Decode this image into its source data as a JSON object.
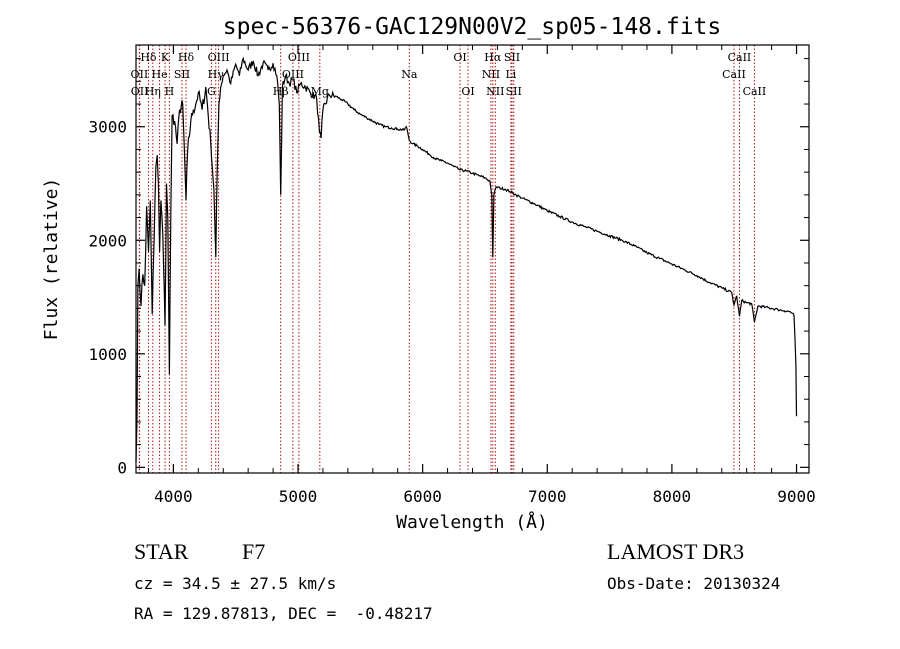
{
  "chart_data": {
    "type": "line",
    "title": "spec-56376-GAC129N00V2_sp05-148.fits",
    "xlabel": "Wavelength (Å)",
    "ylabel": "Flux (relative)",
    "xlim": [
      3700,
      9100
    ],
    "ylim": [
      -50,
      3720
    ],
    "x_ticks": [
      4000,
      5000,
      6000,
      7000,
      8000,
      9000
    ],
    "y_ticks": [
      0,
      1000,
      2000,
      3000
    ],
    "spectrum_anchors": [
      [
        3700,
        50
      ],
      [
        3708,
        420
      ],
      [
        3715,
        1600
      ],
      [
        3725,
        1750
      ],
      [
        3740,
        1420
      ],
      [
        3755,
        1700
      ],
      [
        3770,
        1600
      ],
      [
        3785,
        2300
      ],
      [
        3800,
        1900
      ],
      [
        3815,
        2350
      ],
      [
        3830,
        1350
      ],
      [
        3845,
        2000
      ],
      [
        3860,
        2650
      ],
      [
        3870,
        2750
      ],
      [
        3880,
        2500
      ],
      [
        3889,
        1900
      ],
      [
        3900,
        2350
      ],
      [
        3915,
        2050
      ],
      [
        3933,
        1250
      ],
      [
        3945,
        2500
      ],
      [
        3955,
        2200
      ],
      [
        3968,
        820
      ],
      [
        3980,
        2300
      ],
      [
        3990,
        3100
      ],
      [
        4010,
        3050
      ],
      [
        4030,
        2850
      ],
      [
        4050,
        3150
      ],
      [
        4075,
        3200
      ],
      [
        4101,
        2350
      ],
      [
        4115,
        2800
      ],
      [
        4140,
        3050
      ],
      [
        4160,
        3150
      ],
      [
        4180,
        3200
      ],
      [
        4200,
        3300
      ],
      [
        4230,
        3150
      ],
      [
        4260,
        3350
      ],
      [
        4300,
        2850
      ],
      [
        4325,
        2450
      ],
      [
        4340,
        1850
      ],
      [
        4352,
        2650
      ],
      [
        4365,
        3200
      ],
      [
        4380,
        3350
      ],
      [
        4400,
        3450
      ],
      [
        4430,
        3500
      ],
      [
        4460,
        3380
      ],
      [
        4500,
        3550
      ],
      [
        4530,
        3450
      ],
      [
        4560,
        3600
      ],
      [
        4600,
        3500
      ],
      [
        4640,
        3580
      ],
      [
        4680,
        3450
      ],
      [
        4720,
        3560
      ],
      [
        4760,
        3500
      ],
      [
        4800,
        3560
      ],
      [
        4830,
        3450
      ],
      [
        4850,
        3200
      ],
      [
        4861,
        2400
      ],
      [
        4875,
        3350
      ],
      [
        4900,
        3450
      ],
      [
        4930,
        3380
      ],
      [
        4960,
        3420
      ],
      [
        4990,
        3300
      ],
      [
        5020,
        3380
      ],
      [
        5060,
        3350
      ],
      [
        5100,
        3300
      ],
      [
        5150,
        3250
      ],
      [
        5172,
        2950
      ],
      [
        5185,
        2900
      ],
      [
        5200,
        3150
      ],
      [
        5250,
        3280
      ],
      [
        5300,
        3270
      ],
      [
        5350,
        3240
      ],
      [
        5400,
        3200
      ],
      [
        5450,
        3150
      ],
      [
        5500,
        3110
      ],
      [
        5550,
        3080
      ],
      [
        5600,
        3050
      ],
      [
        5650,
        3020
      ],
      [
        5700,
        3000
      ],
      [
        5750,
        2990
      ],
      [
        5800,
        2980
      ],
      [
        5850,
        2970
      ],
      [
        5870,
        3000
      ],
      [
        5893,
        2880
      ],
      [
        5920,
        2850
      ],
      [
        5960,
        2830
      ],
      [
        6000,
        2800
      ],
      [
        6050,
        2760
      ],
      [
        6100,
        2720
      ],
      [
        6150,
        2700
      ],
      [
        6200,
        2680
      ],
      [
        6250,
        2650
      ],
      [
        6300,
        2620
      ],
      [
        6350,
        2610
      ],
      [
        6400,
        2590
      ],
      [
        6450,
        2570
      ],
      [
        6500,
        2550
      ],
      [
        6540,
        2520
      ],
      [
        6555,
        2400
      ],
      [
        6563,
        1850
      ],
      [
        6572,
        2400
      ],
      [
        6590,
        2470
      ],
      [
        6620,
        2460
      ],
      [
        6660,
        2450
      ],
      [
        6700,
        2430
      ],
      [
        6750,
        2400
      ],
      [
        6800,
        2370
      ],
      [
        6900,
        2320
      ],
      [
        7000,
        2260
      ],
      [
        7100,
        2210
      ],
      [
        7200,
        2160
      ],
      [
        7300,
        2120
      ],
      [
        7400,
        2080
      ],
      [
        7500,
        2040
      ],
      [
        7600,
        2000
      ],
      [
        7700,
        1950
      ],
      [
        7800,
        1890
      ],
      [
        7900,
        1840
      ],
      [
        8000,
        1790
      ],
      [
        8100,
        1740
      ],
      [
        8200,
        1690
      ],
      [
        8300,
        1630
      ],
      [
        8400,
        1580
      ],
      [
        8480,
        1540
      ],
      [
        8498,
        1430
      ],
      [
        8520,
        1510
      ],
      [
        8542,
        1330
      ],
      [
        8560,
        1470
      ],
      [
        8600,
        1450
      ],
      [
        8640,
        1440
      ],
      [
        8662,
        1280
      ],
      [
        8690,
        1420
      ],
      [
        8750,
        1410
      ],
      [
        8800,
        1400
      ],
      [
        8850,
        1390
      ],
      [
        8900,
        1380
      ],
      [
        8950,
        1370
      ],
      [
        8980,
        1340
      ],
      [
        8995,
        900
      ],
      [
        9000,
        450
      ]
    ],
    "line_markers": [
      {
        "label": "Hδ",
        "wavelength": 3800,
        "row": 1
      },
      {
        "label": "K",
        "wavelength": 3933,
        "row": 1
      },
      {
        "label": "Hδ",
        "wavelength": 4101,
        "row": 1
      },
      {
        "label": "OIII",
        "wavelength": 4363,
        "row": 1
      },
      {
        "label": "OIII",
        "wavelength": 5007,
        "row": 1
      },
      {
        "label": "OI",
        "wavelength": 6300,
        "row": 1
      },
      {
        "label": "Hα",
        "wavelength": 6563,
        "row": 1
      },
      {
        "label": "SII",
        "wavelength": 6717,
        "row": 1
      },
      {
        "label": "CaII",
        "wavelength": 8542,
        "row": 1
      },
      {
        "label": "OII",
        "wavelength": 3727,
        "row": 2
      },
      {
        "label": "He",
        "wavelength": 3889,
        "row": 2
      },
      {
        "label": "SII",
        "wavelength": 4069,
        "row": 2
      },
      {
        "label": "Hγ",
        "wavelength": 4340,
        "row": 2
      },
      {
        "label": "OIII",
        "wavelength": 4959,
        "row": 2
      },
      {
        "label": "Na",
        "wavelength": 5893,
        "row": 2
      },
      {
        "label": "NII",
        "wavelength": 6548,
        "row": 2
      },
      {
        "label": "Li",
        "wavelength": 6708,
        "row": 2
      },
      {
        "label": "CaII",
        "wavelength": 8498,
        "row": 2
      },
      {
        "label": "OII",
        "wavelength": 3729,
        "row": 3
      },
      {
        "label": "Hη",
        "wavelength": 3835,
        "row": 3
      },
      {
        "label": "H",
        "wavelength": 3968,
        "row": 3
      },
      {
        "label": "G",
        "wavelength": 4305,
        "row": 3
      },
      {
        "label": "Hβ",
        "wavelength": 4861,
        "row": 3
      },
      {
        "label": "Mg",
        "wavelength": 5175,
        "row": 3
      },
      {
        "label": "OI",
        "wavelength": 6364,
        "row": 3
      },
      {
        "label": "NII",
        "wavelength": 6583,
        "row": 3
      },
      {
        "label": "SII",
        "wavelength": 6731,
        "row": 3
      },
      {
        "label": "CaII",
        "wavelength": 8662,
        "row": 3
      }
    ],
    "marker_color": "#b01010",
    "line_color": "#000000"
  },
  "info": {
    "object_type": "STAR",
    "subclass": "F7",
    "survey": "LAMOST DR3",
    "cz": "cz = 34.5 ± 27.5 km/s",
    "obs_date": "Obs-Date: 20130324",
    "coords": "RA = 129.87813, DEC =  -0.48217"
  }
}
